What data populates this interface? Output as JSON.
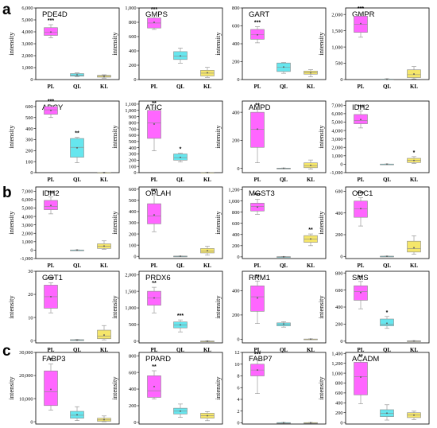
{
  "figure": {
    "section_letters": [
      "a",
      "b",
      "c"
    ],
    "colors": {
      "PL": "#ff66ff",
      "QL": "#66e6ee",
      "KL": "#f5e66a",
      "frame": "#000000",
      "box_edge": "#8a8a8a"
    }
  },
  "chart_data": [
    {
      "type": "box",
      "section": "a",
      "title": "PDE4D",
      "ylabel": "intensity",
      "categories": [
        "PL",
        "QL",
        "KL"
      ],
      "yticks": [
        "0",
        "1,000",
        "2,000",
        "3,000",
        "4,000",
        "5,000",
        "6,000"
      ],
      "ylim": [
        0,
        6000
      ],
      "boxes": [
        {
          "min": 3500,
          "q1": 3700,
          "median": 3950,
          "q3": 4350,
          "max": 4600,
          "mean": 3980,
          "sig": "***"
        },
        {
          "min": 230,
          "q1": 280,
          "median": 380,
          "q3": 500,
          "max": 560,
          "mean": 390,
          "sig": ""
        },
        {
          "min": 120,
          "q1": 200,
          "median": 280,
          "q3": 350,
          "max": 400,
          "mean": 280,
          "sig": ""
        }
      ]
    },
    {
      "type": "box",
      "section": "a",
      "title": "GMPS",
      "ylabel": "intensity",
      "categories": [
        "PL",
        "QL",
        "KL"
      ],
      "yticks": [
        "0",
        "200",
        "400",
        "600",
        "800",
        "1,000"
      ],
      "ylim": [
        0,
        1000
      ],
      "boxes": [
        {
          "min": 700,
          "q1": 720,
          "median": 790,
          "q3": 860,
          "max": 920,
          "mean": 800,
          "sig": "***"
        },
        {
          "min": 230,
          "q1": 280,
          "median": 330,
          "q3": 390,
          "max": 440,
          "mean": 330,
          "sig": ""
        },
        {
          "min": 30,
          "q1": 50,
          "median": 90,
          "q3": 130,
          "max": 170,
          "mean": 95,
          "sig": ""
        }
      ]
    },
    {
      "type": "box",
      "section": "a",
      "title": "GART",
      "ylabel": "intensity",
      "categories": [
        "PL",
        "QL",
        "KL"
      ],
      "yticks": [
        "0",
        "200",
        "400",
        "600",
        "800"
      ],
      "ylim": [
        0,
        800
      ],
      "boxes": [
        {
          "min": 410,
          "q1": 450,
          "median": 500,
          "q3": 560,
          "max": 590,
          "mean": 500,
          "sig": "***"
        },
        {
          "min": 70,
          "q1": 90,
          "median": 140,
          "q3": 185,
          "max": 190,
          "mean": 140,
          "sig": ""
        },
        {
          "min": 30,
          "q1": 60,
          "median": 75,
          "q3": 95,
          "max": 110,
          "mean": 75,
          "sig": ""
        }
      ]
    },
    {
      "type": "box",
      "section": "a",
      "title": "GMPR",
      "ylabel": "intensity",
      "categories": [
        "PL",
        "QL",
        "KL"
      ],
      "yticks": [
        "0",
        "500",
        "1,000",
        "1,500",
        "2,000"
      ],
      "ylim": [
        0,
        2200
      ],
      "boxes": [
        {
          "min": 1300,
          "q1": 1450,
          "median": 1700,
          "q3": 1950,
          "max": 2050,
          "mean": 1720,
          "sig": "***"
        },
        {
          "min": 0,
          "q1": 5,
          "median": 10,
          "q3": 15,
          "max": 25,
          "mean": 10,
          "sig": ""
        },
        {
          "min": 20,
          "q1": 60,
          "median": 150,
          "q3": 300,
          "max": 400,
          "mean": 170,
          "sig": ""
        }
      ]
    },
    {
      "type": "box",
      "section": "a",
      "title": "ADCY",
      "ylabel": "intensity",
      "categories": [
        "PL",
        "QL",
        "KL"
      ],
      "yticks": [
        "0",
        "100",
        "200",
        "300",
        "400",
        "500",
        "600"
      ],
      "ylim": [
        0,
        650
      ],
      "boxes": [
        {
          "min": 500,
          "q1": 530,
          "median": 570,
          "q3": 600,
          "max": 610,
          "mean": 565,
          "sig": "***"
        },
        {
          "min": 90,
          "q1": 140,
          "median": 230,
          "q3": 310,
          "max": 320,
          "mean": 225,
          "sig": "**"
        },
        {
          "min": 0,
          "q1": 0,
          "median": 1,
          "q3": 2,
          "max": 3,
          "mean": 1,
          "sig": ""
        }
      ]
    },
    {
      "type": "box",
      "section": "a",
      "title": "ATIC",
      "ylabel": "intensity",
      "categories": [
        "PL",
        "QL",
        "KL"
      ],
      "yticks": [
        "0",
        "100",
        "200",
        "300",
        "400",
        "500",
        "600",
        "700",
        "800",
        "900",
        "1,000",
        "1,100"
      ],
      "ylim": [
        0,
        1150
      ],
      "boxes": [
        {
          "min": 350,
          "q1": 550,
          "median": 800,
          "q3": 1000,
          "max": 1050,
          "mean": 780,
          "sig": "**"
        },
        {
          "min": 170,
          "q1": 200,
          "median": 240,
          "q3": 300,
          "max": 310,
          "mean": 245,
          "sig": "*"
        },
        {
          "min": 0,
          "q1": 0,
          "median": 2,
          "q3": 4,
          "max": 6,
          "mean": 2,
          "sig": ""
        }
      ]
    },
    {
      "type": "box",
      "section": "a",
      "title": "AMPD",
      "ylabel": "intensity",
      "categories": [
        "PL",
        "QL",
        "KL"
      ],
      "yticks": [
        "0",
        "200",
        "400"
      ],
      "ylim": [
        -30,
        480
      ],
      "boxes": [
        {
          "min": 40,
          "q1": 150,
          "median": 280,
          "q3": 400,
          "max": 420,
          "mean": 280,
          "sig": "**"
        },
        {
          "min": 0,
          "q1": 0,
          "median": 1,
          "q3": 2,
          "max": 3,
          "mean": 1,
          "sig": ""
        },
        {
          "min": -5,
          "q1": 5,
          "median": 20,
          "q3": 40,
          "max": 60,
          "mean": 22,
          "sig": ""
        }
      ]
    },
    {
      "type": "box",
      "section": "a",
      "title": "IDH2",
      "ylabel": "intensity",
      "categories": [
        "PL",
        "QL",
        "KL"
      ],
      "yticks": [
        "-1,000",
        "0",
        "1,000",
        "2,000",
        "3,000",
        "4,000",
        "5,000",
        "6,000",
        "7,000"
      ],
      "ylim": [
        -1000,
        7500
      ],
      "boxes": [
        {
          "min": 4300,
          "q1": 4800,
          "median": 5200,
          "q3": 5900,
          "max": 6300,
          "mean": 5300,
          "sig": "***"
        },
        {
          "min": 0,
          "q1": 0,
          "median": 10,
          "q3": 20,
          "max": 30,
          "mean": 10,
          "sig": ""
        },
        {
          "min": 100,
          "q1": 200,
          "median": 450,
          "q3": 700,
          "max": 900,
          "mean": 450,
          "sig": "*"
        }
      ]
    },
    {
      "type": "box",
      "section": "b",
      "title": "IDH2",
      "ylabel": "intensity",
      "categories": [
        "PL",
        "QL",
        "KL"
      ],
      "yticks": [
        "-1,000",
        "0",
        "1,000",
        "2,000",
        "3,000",
        "4,000",
        "5,000",
        "6,000",
        "7,000"
      ],
      "ylim": [
        -1000,
        7500
      ],
      "boxes": [
        {
          "min": 4300,
          "q1": 4800,
          "median": 5200,
          "q3": 5900,
          "max": 6300,
          "mean": 5300,
          "sig": "***"
        },
        {
          "min": 0,
          "q1": 0,
          "median": 10,
          "q3": 20,
          "max": 30,
          "mean": 10,
          "sig": ""
        },
        {
          "min": 100,
          "q1": 200,
          "median": 450,
          "q3": 750,
          "max": 1100,
          "mean": 480,
          "sig": ""
        }
      ]
    },
    {
      "type": "box",
      "section": "b",
      "title": "OPLAH",
      "ylabel": "intensity",
      "categories": [
        "PL",
        "QL",
        "KL"
      ],
      "yticks": [
        "0",
        "100",
        "200",
        "300",
        "400",
        "500",
        "600"
      ],
      "ylim": [
        -20,
        620
      ],
      "boxes": [
        {
          "min": 220,
          "q1": 290,
          "median": 360,
          "q3": 470,
          "max": 550,
          "mean": 370,
          "sig": "***"
        },
        {
          "min": 0,
          "q1": 0,
          "median": 1,
          "q3": 2,
          "max": 3,
          "mean": 1,
          "sig": ""
        },
        {
          "min": 10,
          "q1": 30,
          "median": 45,
          "q3": 70,
          "max": 90,
          "mean": 50,
          "sig": ""
        }
      ]
    },
    {
      "type": "box",
      "section": "b",
      "title": "MGST3",
      "ylabel": "intensity",
      "categories": [
        "PL",
        "QL",
        "KL"
      ],
      "yticks": [
        "0",
        "200",
        "400",
        "600",
        "800",
        "1,000",
        "1,200"
      ],
      "ylim": [
        -30,
        1250
      ],
      "boxes": [
        {
          "min": 760,
          "q1": 820,
          "median": 900,
          "q3": 960,
          "max": 1030,
          "mean": 890,
          "sig": "***"
        },
        {
          "min": 0,
          "q1": 0,
          "median": 2,
          "q3": 4,
          "max": 5,
          "mean": 2,
          "sig": ""
        },
        {
          "min": 200,
          "q1": 260,
          "median": 320,
          "q3": 380,
          "max": 410,
          "mean": 320,
          "sig": "**"
        }
      ]
    },
    {
      "type": "box",
      "section": "b",
      "title": "ODC1",
      "ylabel": "intensity",
      "categories": [
        "PL",
        "QL",
        "KL"
      ],
      "yticks": [
        "0",
        "200",
        "400",
        "600"
      ],
      "ylim": [
        -20,
        640
      ],
      "boxes": [
        {
          "min": 280,
          "q1": 360,
          "median": 440,
          "q3": 510,
          "max": 540,
          "mean": 440,
          "sig": "***"
        },
        {
          "min": 0,
          "q1": 0,
          "median": 1,
          "q3": 2,
          "max": 3,
          "mean": 1,
          "sig": ""
        },
        {
          "min": 20,
          "q1": 40,
          "median": 70,
          "q3": 140,
          "max": 190,
          "mean": 80,
          "sig": ""
        }
      ]
    },
    {
      "type": "box",
      "section": "b",
      "title": "GGT1",
      "ylabel": "intensity",
      "categories": [
        "PL",
        "QL",
        "KL"
      ],
      "yticks": [
        "0",
        "10",
        "20",
        "30"
      ],
      "ylim": [
        -1,
        30
      ],
      "boxes": [
        {
          "min": 12,
          "q1": 14,
          "median": 19,
          "q3": 24,
          "max": 25,
          "mean": 19,
          "sig": "***"
        },
        {
          "min": 0,
          "q1": 0,
          "median": 0.2,
          "q3": 0.4,
          "max": 0.5,
          "mean": 0.2,
          "sig": ""
        },
        {
          "min": 0.3,
          "q1": 0.8,
          "median": 2,
          "q3": 4.5,
          "max": 6.5,
          "mean": 2.4,
          "sig": ""
        }
      ]
    },
    {
      "type": "box",
      "section": "b",
      "title": "PRDX6",
      "ylabel": "intensity",
      "categories": [
        "PL",
        "QL",
        "KL"
      ],
      "yticks": [
        "0",
        "500",
        "1,000",
        "1,500",
        "2,000"
      ],
      "ylim": [
        -50,
        2100
      ],
      "boxes": [
        {
          "min": 850,
          "q1": 1080,
          "median": 1300,
          "q3": 1500,
          "max": 1620,
          "mean": 1300,
          "sig": "**"
        },
        {
          "min": 280,
          "q1": 400,
          "median": 490,
          "q3": 580,
          "max": 640,
          "mean": 490,
          "sig": "***"
        },
        {
          "min": 0,
          "q1": 0,
          "median": 3,
          "q3": 6,
          "max": 10,
          "mean": 3,
          "sig": ""
        }
      ]
    },
    {
      "type": "box",
      "section": "b",
      "title": "RRM1",
      "ylabel": "intensity",
      "categories": [
        "PL",
        "QL",
        "KL"
      ],
      "yticks": [
        "0",
        "200",
        "400"
      ],
      "ylim": [
        -30,
        560
      ],
      "boxes": [
        {
          "min": 130,
          "q1": 230,
          "median": 350,
          "q3": 440,
          "max": 480,
          "mean": 340,
          "sig": "**"
        },
        {
          "min": 100,
          "q1": 110,
          "median": 125,
          "q3": 135,
          "max": 145,
          "mean": 125,
          "sig": ""
        },
        {
          "min": 0,
          "q1": 0,
          "median": 1,
          "q3": 2,
          "max": 3,
          "mean": 1,
          "sig": ""
        }
      ]
    },
    {
      "type": "box",
      "section": "b",
      "title": "SMS",
      "ylabel": "intensity",
      "categories": [
        "PL",
        "QL",
        "KL"
      ],
      "yticks": [
        "0",
        "200",
        "400",
        "600",
        "800"
      ],
      "ylim": [
        -20,
        820
      ],
      "boxes": [
        {
          "min": 380,
          "q1": 480,
          "median": 580,
          "q3": 650,
          "max": 700,
          "mean": 570,
          "sig": "**"
        },
        {
          "min": 150,
          "q1": 180,
          "median": 200,
          "q3": 260,
          "max": 290,
          "mean": 210,
          "sig": "*"
        },
        {
          "min": 0,
          "q1": 0,
          "median": 2,
          "q3": 4,
          "max": 6,
          "mean": 2,
          "sig": ""
        }
      ]
    },
    {
      "type": "box",
      "section": "c",
      "title": "FABP3",
      "ylabel": "intensity",
      "categories": [
        "PL",
        "QL",
        "KL"
      ],
      "yticks": [
        "0",
        "10,000",
        "20,000",
        "30,000"
      ],
      "ylim": [
        -1000,
        30000
      ],
      "boxes": [
        {
          "min": 5000,
          "q1": 7000,
          "median": 13000,
          "q3": 22000,
          "max": 25000,
          "mean": 14000,
          "sig": "*"
        },
        {
          "min": 500,
          "q1": 1500,
          "median": 2800,
          "q3": 4500,
          "max": 6500,
          "mean": 3000,
          "sig": ""
        },
        {
          "min": 0,
          "q1": 200,
          "median": 800,
          "q3": 1500,
          "max": 2500,
          "mean": 900,
          "sig": ""
        }
      ]
    },
    {
      "type": "box",
      "section": "c",
      "title": "PPARD",
      "ylabel": "intensity",
      "categories": [
        "PL",
        "QL",
        "KL"
      ],
      "yticks": [
        "0",
        "200",
        "400",
        "600",
        "800"
      ],
      "ylim": [
        -20,
        840
      ],
      "boxes": [
        {
          "min": 280,
          "q1": 300,
          "median": 380,
          "q3": 560,
          "max": 620,
          "mean": 430,
          "sig": "**"
        },
        {
          "min": 60,
          "q1": 100,
          "median": 135,
          "q3": 170,
          "max": 220,
          "mean": 135,
          "sig": ""
        },
        {
          "min": 20,
          "q1": 50,
          "median": 80,
          "q3": 110,
          "max": 130,
          "mean": 80,
          "sig": ""
        }
      ]
    },
    {
      "type": "box",
      "section": "c",
      "title": "FABP7",
      "ylabel": "intensity",
      "categories": [
        "PL",
        "QL",
        "KL"
      ],
      "yticks": [
        "0",
        "2",
        "4",
        "6",
        "8",
        "10",
        "12"
      ],
      "ylim": [
        -0.2,
        12
      ],
      "boxes": [
        {
          "min": 5,
          "q1": 8,
          "median": 9,
          "q3": 10,
          "max": 11,
          "mean": 9,
          "sig": "***"
        },
        {
          "min": 0,
          "q1": 0,
          "median": 0.02,
          "q3": 0.04,
          "max": 0.06,
          "mean": 0.02,
          "sig": ""
        },
        {
          "min": 0,
          "q1": 0,
          "median": 0.02,
          "q3": 0.04,
          "max": 0.06,
          "mean": 0.02,
          "sig": ""
        }
      ]
    },
    {
      "type": "box",
      "section": "c",
      "title": "ACADM",
      "ylabel": "intensity",
      "categories": [
        "PL",
        "QL",
        "KL"
      ],
      "yticks": [
        "0",
        "200",
        "400",
        "600",
        "800",
        "1,000",
        "1,200",
        "1,400"
      ],
      "ylim": [
        -30,
        1420
      ],
      "boxes": [
        {
          "min": 380,
          "q1": 560,
          "median": 930,
          "q3": 1220,
          "max": 1260,
          "mean": 920,
          "sig": "**"
        },
        {
          "min": 50,
          "q1": 120,
          "median": 190,
          "q3": 260,
          "max": 360,
          "mean": 190,
          "sig": ""
        },
        {
          "min": 60,
          "q1": 100,
          "median": 150,
          "q3": 200,
          "max": 230,
          "mean": 150,
          "sig": ""
        }
      ]
    }
  ]
}
